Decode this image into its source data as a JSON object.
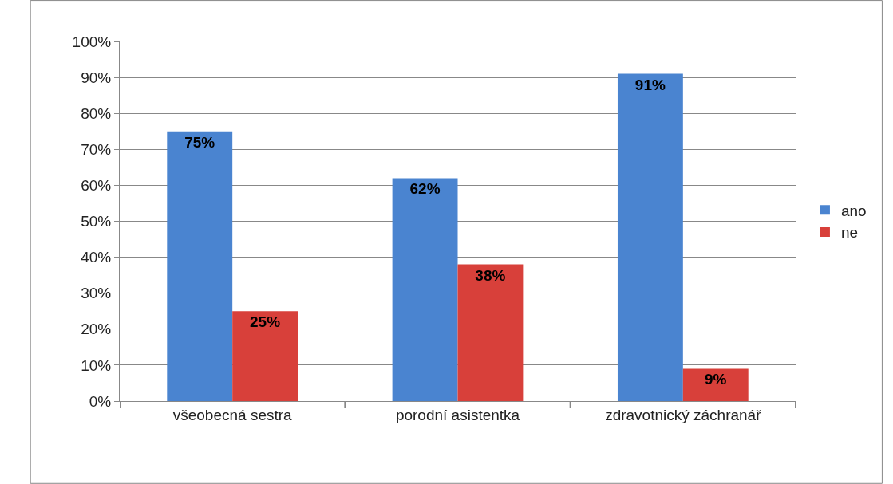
{
  "chart_data": {
    "type": "bar",
    "categories": [
      "všeobecná sestra",
      "porodní asistentka",
      "zdravotnický záchranář"
    ],
    "series": [
      {
        "name": "ano",
        "color": "#4a84d0",
        "values": [
          75,
          62,
          91
        ],
        "value_labels": [
          "75%",
          "62%",
          "91%"
        ]
      },
      {
        "name": "ne",
        "color": "#d8403a",
        "values": [
          25,
          38,
          9
        ],
        "value_labels": [
          "25%",
          "38%",
          "9%"
        ]
      }
    ],
    "ylim": [
      0,
      100
    ],
    "yticks": [
      {
        "value": 0,
        "label": "0%"
      },
      {
        "value": 10,
        "label": "10%"
      },
      {
        "value": 20,
        "label": "20%"
      },
      {
        "value": 30,
        "label": "30%"
      },
      {
        "value": 40,
        "label": "40%"
      },
      {
        "value": 50,
        "label": "50%"
      },
      {
        "value": 60,
        "label": "60%"
      },
      {
        "value": 70,
        "label": "70%"
      },
      {
        "value": 80,
        "label": "80%"
      },
      {
        "value": 90,
        "label": "90%"
      },
      {
        "value": 100,
        "label": "100%"
      }
    ],
    "grid": "y",
    "legend": "right"
  }
}
